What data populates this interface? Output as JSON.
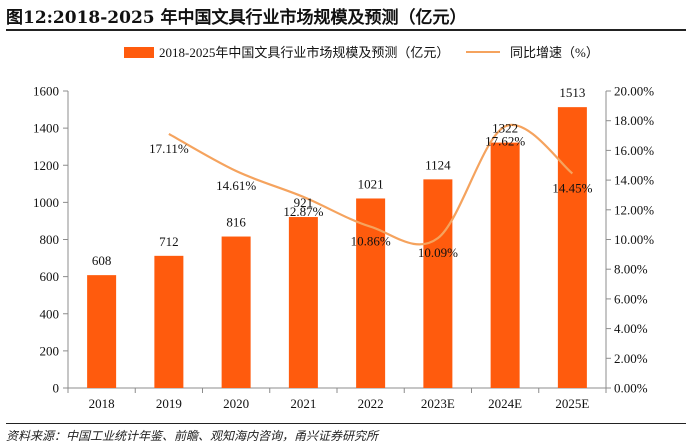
{
  "page": {
    "title": "图12:2018-2025 年中国文具行业市场规模及预测（亿元）",
    "source": "资料来源：中国工业统计年鉴、前瞻、观知海内咨询，甬兴证券研究所"
  },
  "chart_data": {
    "type": "bar",
    "categories": [
      "2018",
      "2019",
      "2020",
      "2021",
      "2022",
      "2023E",
      "2024E",
      "2025E"
    ],
    "series": [
      {
        "name": "2018-2025年中国文具行业市场规模及预测（亿元）",
        "type": "bar",
        "axis": "left",
        "values": [
          608,
          712,
          816,
          921,
          1021,
          1124,
          1322,
          1513
        ],
        "labels": [
          "608",
          "712",
          "816",
          "921",
          "1021",
          "1124",
          "1322",
          "1513"
        ]
      },
      {
        "name": "同比增速（%）",
        "type": "line",
        "axis": "right",
        "x": [
          "2019",
          "2020",
          "2021",
          "2022",
          "2023E",
          "2024E",
          "2025E"
        ],
        "values": [
          17.11,
          14.61,
          12.87,
          10.86,
          10.09,
          17.62,
          14.45
        ],
        "labels": [
          "17.11%",
          "14.61%",
          "12.87%",
          "10.86%",
          "10.09%",
          "17.62%",
          "14.45%"
        ]
      }
    ],
    "y_left": {
      "min": 0,
      "max": 1600,
      "ticks": [
        "0",
        "200",
        "400",
        "600",
        "800",
        "1000",
        "1200",
        "1400",
        "1600"
      ]
    },
    "y_right": {
      "min": 0,
      "max": 20,
      "ticks": [
        "0.00%",
        "2.00%",
        "4.00%",
        "6.00%",
        "8.00%",
        "10.00%",
        "12.00%",
        "14.00%",
        "16.00%",
        "18.00%",
        "20.00%"
      ]
    },
    "grid": false,
    "legend": "top",
    "colors": {
      "bar": "#FF5B0D",
      "line": "#F5A35E",
      "axis": "#8C8C8C",
      "text": "#111111"
    }
  }
}
